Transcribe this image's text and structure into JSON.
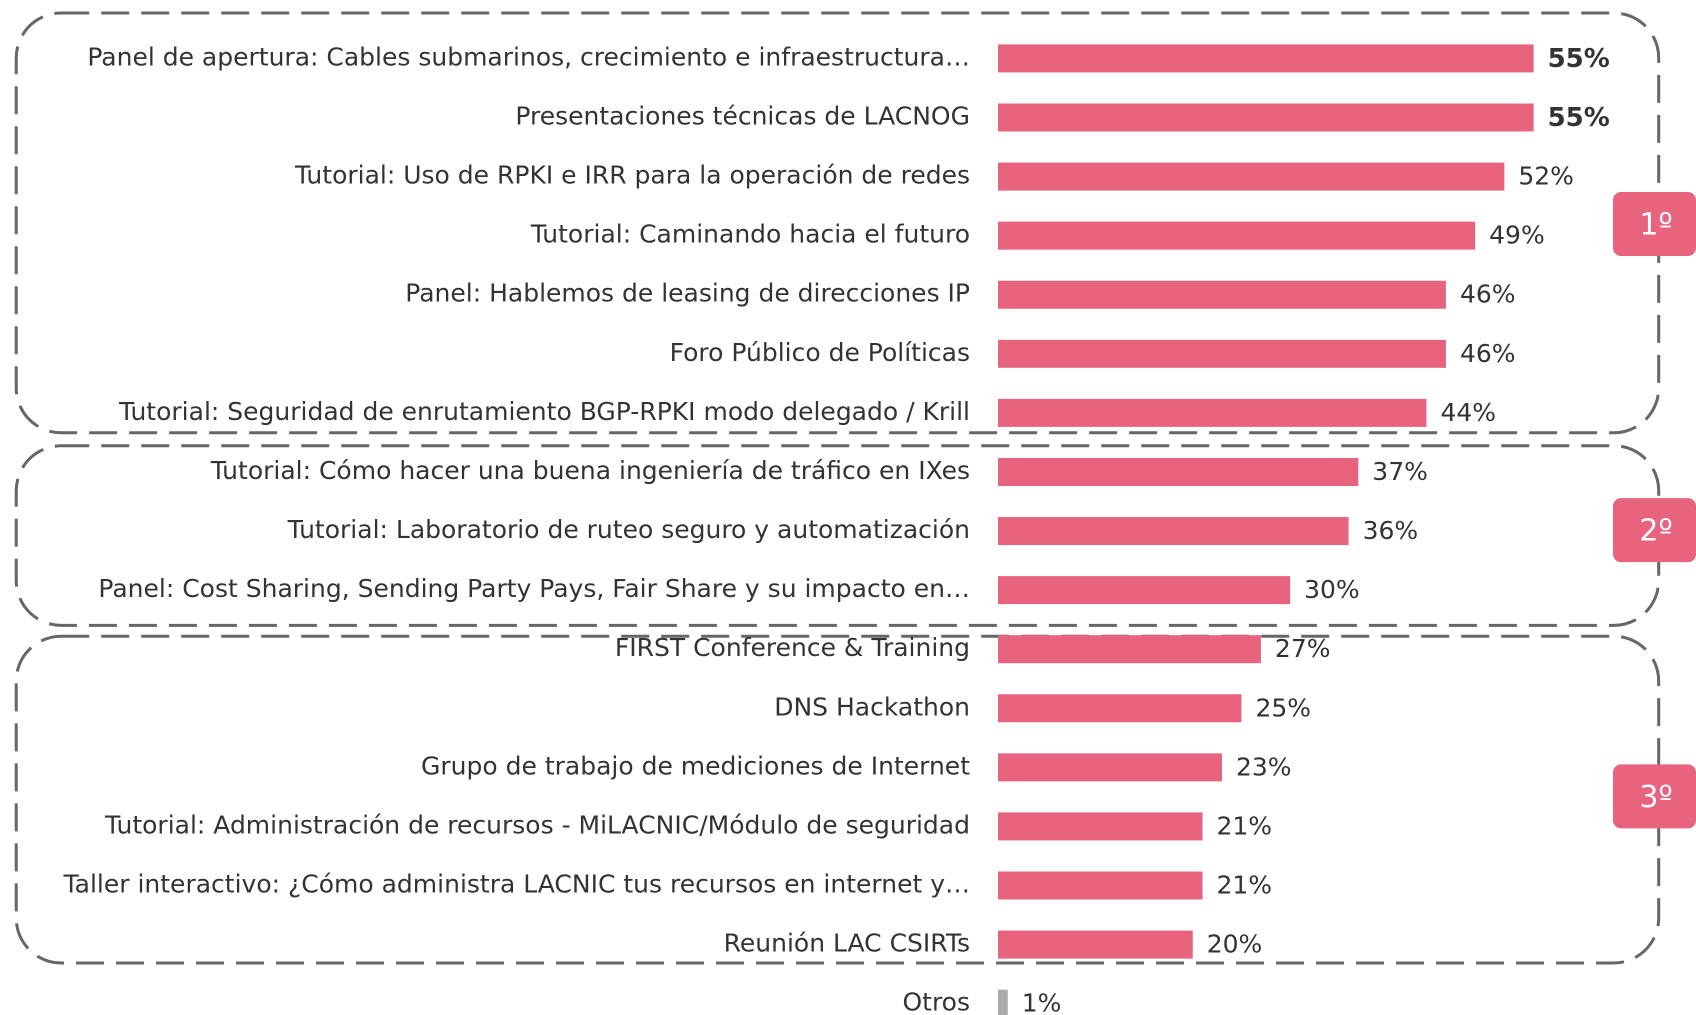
{
  "chart_data": {
    "type": "bar",
    "categories": [
      "Panel de apertura: Cables submarinos, crecimiento e infraestructura…",
      "Presentaciones técnicas de LACNOG",
      "Tutorial: Uso de RPKI e IRR para la operación de redes",
      "Tutorial: Caminando hacia el futuro",
      "Panel: Hablemos de leasing de direcciones IP",
      "Foro Público de Políticas",
      "Tutorial: Seguridad de enrutamiento BGP-RPKI modo delegado / Krill",
      "Tutorial: Cómo hacer una buena ingeniería de tráfico en IXes",
      "Tutorial: Laboratorio de ruteo seguro y automatización",
      "Panel: Cost Sharing, Sending Party Pays, Fair Share y su impacto en…",
      "FIRST Conference & Training",
      "DNS Hackathon",
      "Grupo de trabajo de mediciones de Internet",
      "Tutorial: Administración de recursos - MiLACNIC/Módulo de seguridad",
      "Taller interactivo: ¿Cómo administra LACNIC tus recursos en internet y…",
      "Reunión LAC CSIRTs",
      "Otros"
    ],
    "values": [
      55,
      55,
      52,
      49,
      46,
      46,
      44,
      37,
      36,
      30,
      27,
      25,
      23,
      21,
      21,
      20,
      1
    ],
    "value_labels": [
      "55%",
      "55%",
      "52%",
      "49%",
      "46%",
      "46%",
      "44%",
      "37%",
      "36%",
      "30%",
      "27%",
      "25%",
      "23%",
      "21%",
      "21%",
      "20%",
      "1%"
    ],
    "colors": [
      "#e8637e",
      "#e8637e",
      "#e8637e",
      "#e8637e",
      "#e8637e",
      "#e8637e",
      "#e8637e",
      "#e8637e",
      "#e8637e",
      "#e8637e",
      "#e8637e",
      "#e8637e",
      "#e8637e",
      "#e8637e",
      "#e8637e",
      "#e8637e",
      "#aaaaaa"
    ],
    "annotations": [
      "1º",
      "2º",
      "3º"
    ]
  }
}
